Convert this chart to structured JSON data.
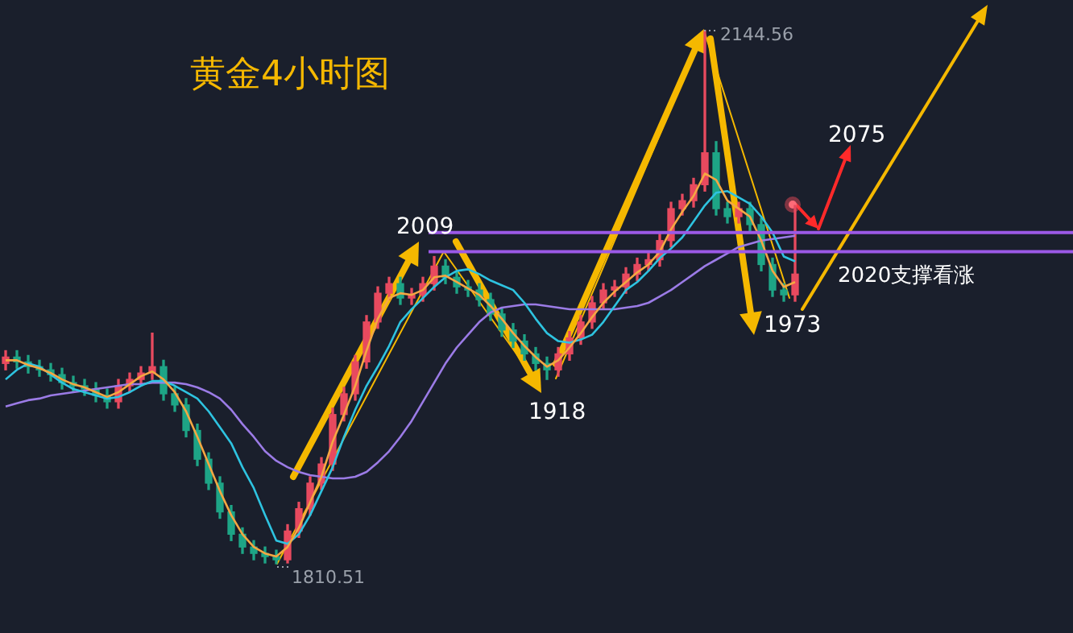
{
  "chart_data": {
    "type": "candlestick",
    "title": "黄金4小时图",
    "categories": [
      null,
      null,
      null,
      null,
      null,
      null,
      null,
      null,
      null,
      null,
      null,
      null,
      null,
      null,
      null,
      null,
      null,
      null,
      null,
      null,
      null,
      null,
      null,
      null,
      null,
      null,
      null,
      null,
      null,
      null,
      null,
      null,
      null,
      null,
      null,
      null,
      null,
      null,
      null,
      null,
      null,
      null,
      null,
      null,
      null,
      null,
      null,
      null,
      null,
      null,
      null,
      null,
      null,
      null,
      null,
      null,
      null,
      null,
      null,
      null,
      null,
      null,
      null,
      null,
      null,
      null,
      null,
      null,
      null,
      null,
      null
    ],
    "ohlc": [
      [
        1936,
        1944,
        1932,
        1940
      ],
      [
        1940,
        1944,
        1933,
        1937
      ],
      [
        1937,
        1941,
        1930,
        1934
      ],
      [
        1934,
        1938,
        1928,
        1932
      ],
      [
        1932,
        1936,
        1925,
        1929
      ],
      [
        1929,
        1933,
        1920,
        1924
      ],
      [
        1924,
        1928,
        1918,
        1922
      ],
      [
        1922,
        1926,
        1916,
        1920
      ],
      [
        1920,
        1924,
        1912,
        1916
      ],
      [
        1916,
        1920,
        1908,
        1912
      ],
      [
        1912,
        1926,
        1908,
        1922
      ],
      [
        1922,
        1930,
        1918,
        1926
      ],
      [
        1926,
        1934,
        1922,
        1930
      ],
      [
        1930,
        1955,
        1926,
        1934
      ],
      [
        1934,
        1938,
        1913,
        1917
      ],
      [
        1917,
        1921,
        1906,
        1910
      ],
      [
        1910,
        1914,
        1890,
        1894
      ],
      [
        1894,
        1898,
        1872,
        1876
      ],
      [
        1876,
        1880,
        1857,
        1861
      ],
      [
        1861,
        1865,
        1839,
        1843
      ],
      [
        1843,
        1847,
        1825,
        1829
      ],
      [
        1829,
        1833,
        1817,
        1821
      ],
      [
        1821,
        1825,
        1813,
        1817
      ],
      [
        1817,
        1821,
        1811,
        1815
      ],
      [
        1815,
        1819,
        1810.51,
        1813
      ],
      [
        1813,
        1835,
        1811,
        1831
      ],
      [
        1831,
        1849,
        1827,
        1845
      ],
      [
        1845,
        1865,
        1841,
        1861
      ],
      [
        1861,
        1877,
        1857,
        1873
      ],
      [
        1873,
        1908,
        1869,
        1904
      ],
      [
        1904,
        1921,
        1900,
        1917
      ],
      [
        1917,
        1941,
        1913,
        1937
      ],
      [
        1937,
        1966,
        1933,
        1962
      ],
      [
        1962,
        1984,
        1958,
        1980
      ],
      [
        1980,
        1990,
        1976,
        1986
      ],
      [
        1986,
        1990,
        1973,
        1977
      ],
      [
        1977,
        1983,
        1973,
        1979
      ],
      [
        1979,
        1990,
        1975,
        1986
      ],
      [
        1986,
        2003,
        1982,
        1997
      ],
      [
        1997,
        2001,
        1986,
        1990
      ],
      [
        1990,
        1994,
        1980,
        1984
      ],
      [
        1984,
        1988,
        1978,
        1982
      ],
      [
        1982,
        1986,
        1972,
        1976
      ],
      [
        1976,
        1980,
        1963,
        1967
      ],
      [
        1967,
        1971,
        1953,
        1957
      ],
      [
        1957,
        1961,
        1946,
        1950
      ],
      [
        1950,
        1954,
        1938,
        1942
      ],
      [
        1942,
        1946,
        1932,
        1936
      ],
      [
        1936,
        1940,
        1926,
        1932
      ],
      [
        1932,
        1946,
        1928,
        1942
      ],
      [
        1942,
        1956,
        1938,
        1952
      ],
      [
        1952,
        1966,
        1948,
        1962
      ],
      [
        1962,
        1978,
        1958,
        1974
      ],
      [
        1974,
        1986,
        1970,
        1982
      ],
      [
        1982,
        1988,
        1978,
        1984
      ],
      [
        1984,
        1996,
        1980,
        1992
      ],
      [
        1992,
        2002,
        1988,
        1998
      ],
      [
        1998,
        2005,
        1994,
        2001
      ],
      [
        2001,
        2017,
        1997,
        2013
      ],
      [
        2013,
        2037,
        2009,
        2033
      ],
      [
        2033,
        2042,
        2029,
        2038
      ],
      [
        2038,
        2052,
        2034,
        2048
      ],
      [
        2048,
        2144.56,
        2044,
        2068
      ],
      [
        2068,
        2075,
        2029,
        2033
      ],
      [
        2033,
        2037,
        2024,
        2028
      ],
      [
        2028,
        2037,
        2024,
        2033
      ],
      [
        2033,
        2037,
        2019,
        2023
      ],
      [
        2023,
        2027,
        1994,
        1998
      ],
      [
        1998,
        2002,
        1978,
        1982
      ],
      [
        1982,
        1986,
        1975,
        1979
      ],
      [
        1979,
        2035,
        1975,
        1992
      ]
    ],
    "colors": [
      "#e84a5f",
      "#1ea586",
      "#1ea586",
      "#1ea586",
      "#1ea586",
      "#1ea586",
      "#1ea586",
      "#1ea586",
      "#1ea586",
      "#1ea586",
      "#e84a5f",
      "#e84a5f",
      "#e84a5f",
      "#e84a5f",
      "#1ea586",
      "#1ea586",
      "#1ea586",
      "#1ea586",
      "#1ea586",
      "#1ea586",
      "#1ea586",
      "#1ea586",
      "#1ea586",
      "#1ea586",
      "#1ea586",
      "#e84a5f",
      "#e84a5f",
      "#e84a5f",
      "#e84a5f",
      "#e84a5f",
      "#e84a5f",
      "#e84a5f",
      "#e84a5f",
      "#e84a5f",
      "#e84a5f",
      "#1ea586",
      "#e84a5f",
      "#e84a5f",
      "#e84a5f",
      "#1ea586",
      "#1ea586",
      "#1ea586",
      "#1ea586",
      "#1ea586",
      "#1ea586",
      "#1ea586",
      "#1ea586",
      "#1ea586",
      "#1ea586",
      "#e84a5f",
      "#e84a5f",
      "#e84a5f",
      "#e84a5f",
      "#e84a5f",
      "#e84a5f",
      "#e84a5f",
      "#e84a5f",
      "#e84a5f",
      "#e84a5f",
      "#e84a5f",
      "#e84a5f",
      "#e84a5f",
      "#e84a5f",
      "#1ea586",
      "#1ea586",
      "#e84a5f",
      "#1ea586",
      "#1ea586",
      "#1ea586",
      "#1ea586",
      "#e84a5f"
    ],
    "series": [
      {
        "type": "line",
        "color": "#f5a742",
        "values": [
          1938,
          1938,
          1935,
          1933,
          1930,
          1926,
          1923,
          1921,
          1918,
          1915,
          1918,
          1923,
          1928,
          1931,
          1926,
          1918,
          1906,
          1890,
          1873,
          1856,
          1841,
          1829,
          1821,
          1817,
          1815,
          1821,
          1833,
          1849,
          1865,
          1887,
          1904,
          1922,
          1944,
          1964,
          1977,
          1980,
          1979,
          1982,
          1990,
          1991,
          1987,
          1983,
          1979,
          1972,
          1964,
          1955,
          1947,
          1940,
          1934,
          1938,
          1946,
          1955,
          1965,
          1974,
          1981,
          1987,
          1993,
          1998,
          2006,
          2020,
          2031,
          2041,
          2055,
          2051,
          2038,
          2033,
          2028,
          2013,
          1994,
          1984,
          1987
        ]
      },
      {
        "type": "line",
        "color": "#2ec3e0",
        "values": [
          1926,
          1932,
          1936,
          1934,
          1929,
          1924,
          1920,
          1918,
          1916,
          1914,
          1915,
          1918,
          1922,
          1925,
          1925,
          1922,
          1918,
          1914,
          1906,
          1896,
          1886,
          1871,
          1858,
          1841,
          1825,
          1823,
          1829,
          1841,
          1856,
          1871,
          1890,
          1907,
          1922,
          1934,
          1947,
          1962,
          1970,
          1977,
          1984,
          1990,
          1994,
          1995,
          1992,
          1988,
          1985,
          1982,
          1974,
          1964,
          1955,
          1950,
          1949,
          1951,
          1954,
          1962,
          1972,
          1982,
          1987,
          1994,
          2002,
          2008,
          2015,
          2025,
          2035,
          2043,
          2044,
          2040,
          2036,
          2028,
          2018,
          2003,
          2000
        ]
      },
      {
        "type": "line",
        "color": "#9b7be6",
        "values": [
          1909,
          1911,
          1913,
          1914,
          1916,
          1917,
          1918,
          1919,
          1920,
          1921,
          1922,
          1923,
          1923,
          1924,
          1924,
          1924,
          1923,
          1921,
          1918,
          1914,
          1907,
          1898,
          1890,
          1881,
          1875,
          1871,
          1868,
          1866,
          1865,
          1864,
          1864,
          1865,
          1868,
          1874,
          1881,
          1890,
          1900,
          1912,
          1924,
          1936,
          1946,
          1954,
          1962,
          1968,
          1971,
          1972,
          1973,
          1973,
          1972,
          1971,
          1970,
          1970,
          1970,
          1970,
          1970,
          1971,
          1972,
          1974,
          1978,
          1982,
          1987,
          1992,
          1997,
          2001,
          2005,
          2009,
          2011,
          2013,
          2014,
          2015,
          2016
        ]
      }
    ],
    "ref_lines": [
      {
        "axis": "y",
        "value": 2018,
        "color": "#9b59e6"
      },
      {
        "axis": "y",
        "value": 2006,
        "color": "#9b59e6"
      }
    ],
    "annotations": [
      "2144.56",
      "1810.51",
      "2009",
      "1918",
      "1973",
      "2075",
      "2020支撑看涨"
    ]
  }
}
